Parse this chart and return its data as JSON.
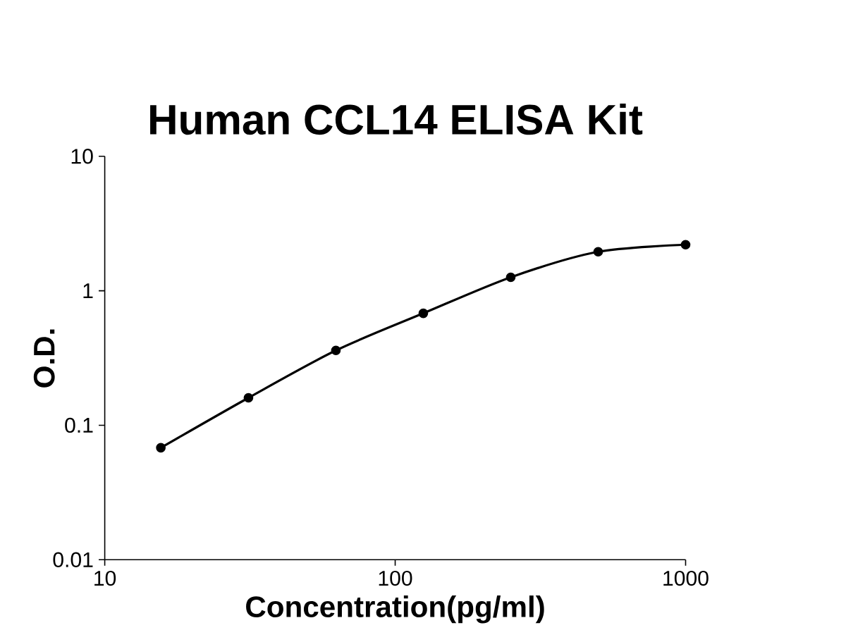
{
  "chart_data": {
    "type": "line",
    "title": "Human CCL14 ELISA Kit",
    "xlabel": "Concentration(pg/ml)",
    "ylabel": "O.D.",
    "x": [
      15.6,
      31.25,
      62.5,
      125,
      250,
      500,
      1000
    ],
    "series": [
      {
        "color": "#000000",
        "values": [
          0.068,
          0.16,
          0.36,
          0.68,
          1.26,
          1.95,
          2.2
        ]
      }
    ],
    "log": "xy",
    "xlim": [
      10,
      1000
    ],
    "ylim": [
      0.01,
      10
    ],
    "xticks": [
      10,
      100,
      1000
    ],
    "yticks": [
      0.01,
      0.1,
      1,
      10
    ],
    "marker": "circle",
    "line_style": "solid",
    "grid": false
  }
}
